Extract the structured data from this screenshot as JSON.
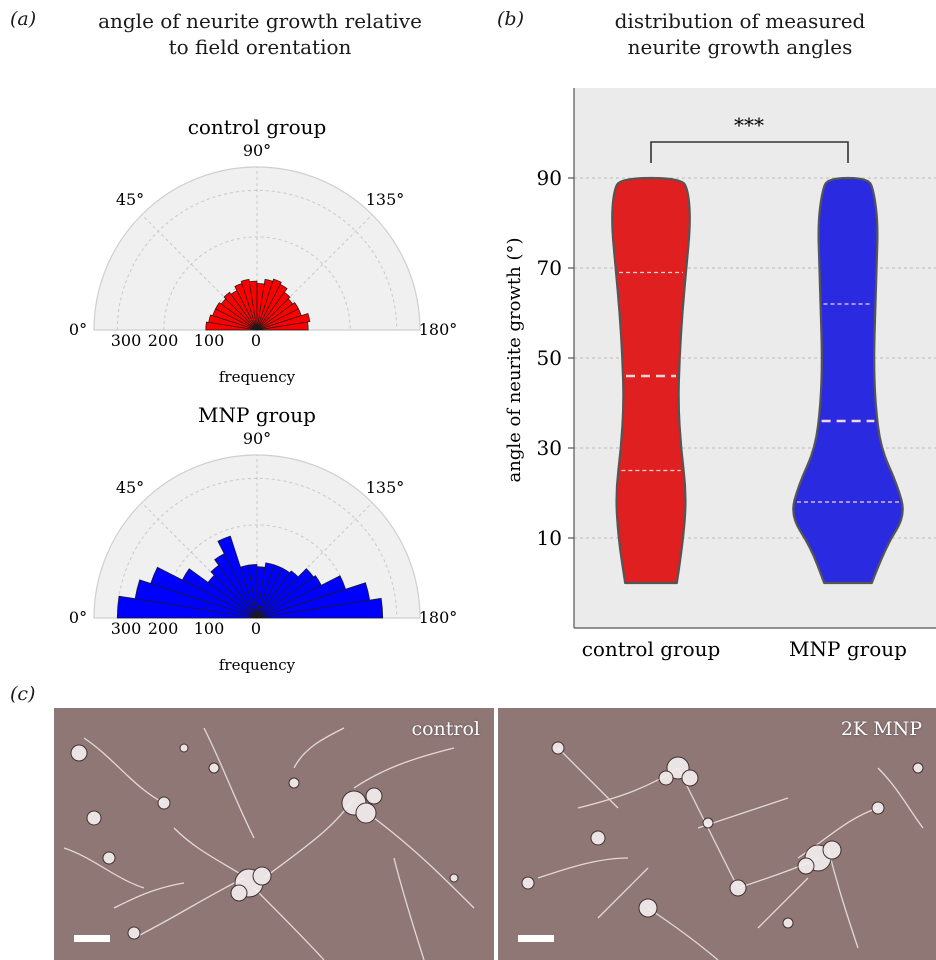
{
  "panel_a": {
    "label": "(a)",
    "title_line1": "angle of neurite growth relative",
    "title_line2": "to field orentation"
  },
  "panel_b": {
    "label": "(b)",
    "title_line1": "distribution of measured",
    "title_line2": "neurite growth angles"
  },
  "panel_c": {
    "label": "(c)",
    "left_tag": "control",
    "right_tag": "2K MNP"
  },
  "colors": {
    "control": "#ff0000",
    "mnp": "#0000ff",
    "control_violin": "#e02020",
    "mnp_violin": "#2a2ae0",
    "polar_bg": "#f0f0f0",
    "plot_bg": "#ebebeb",
    "micrograph_bg": "#8f7776"
  },
  "chart_data": [
    {
      "type": "polar-bar",
      "title": "control group",
      "xlabel": "frequency",
      "angle_labels": [
        "0°",
        "45°",
        "90°",
        "135°",
        "180°"
      ],
      "radial_ticks": [
        300,
        200,
        100,
        0
      ],
      "rmax": 350,
      "bin_width_deg": 9,
      "bins": [
        {
          "angle": 4.5,
          "value": 110
        },
        {
          "angle": 13.5,
          "value": 105
        },
        {
          "angle": 22.5,
          "value": 100
        },
        {
          "angle": 31.5,
          "value": 100
        },
        {
          "angle": 40.5,
          "value": 95
        },
        {
          "angle": 49.5,
          "value": 100
        },
        {
          "angle": 58.5,
          "value": 95
        },
        {
          "angle": 67.5,
          "value": 105
        },
        {
          "angle": 76.5,
          "value": 110
        },
        {
          "angle": 85.5,
          "value": 105
        },
        {
          "angle": 94.5,
          "value": 100
        },
        {
          "angle": 103.5,
          "value": 110
        },
        {
          "angle": 112.5,
          "value": 115
        },
        {
          "angle": 121.5,
          "value": 110
        },
        {
          "angle": 130.5,
          "value": 100
        },
        {
          "angle": 139.5,
          "value": 95
        },
        {
          "angle": 148.5,
          "value": 100
        },
        {
          "angle": 157.5,
          "value": 100
        },
        {
          "angle": 166.5,
          "value": 115
        },
        {
          "angle": 175.5,
          "value": 110
        }
      ]
    },
    {
      "type": "polar-bar",
      "title": "MNP group",
      "xlabel": "frequency",
      "angle_labels": [
        "0°",
        "45°",
        "90°",
        "135°",
        "180°"
      ],
      "radial_ticks": [
        300,
        200,
        100,
        0
      ],
      "rmax": 350,
      "bin_width_deg": 9,
      "bins": [
        {
          "angle": 4.5,
          "value": 300
        },
        {
          "angle": 13.5,
          "value": 265
        },
        {
          "angle": 22.5,
          "value": 240
        },
        {
          "angle": 31.5,
          "value": 180
        },
        {
          "angle": 40.5,
          "value": 130
        },
        {
          "angle": 49.5,
          "value": 140
        },
        {
          "angle": 58.5,
          "value": 155
        },
        {
          "angle": 67.5,
          "value": 185
        },
        {
          "angle": 76.5,
          "value": 115
        },
        {
          "angle": 85.5,
          "value": 115
        },
        {
          "angle": 94.5,
          "value": 110
        },
        {
          "angle": 103.5,
          "value": 120
        },
        {
          "angle": 112.5,
          "value": 120
        },
        {
          "angle": 121.5,
          "value": 120
        },
        {
          "angle": 130.5,
          "value": 125
        },
        {
          "angle": 139.5,
          "value": 150
        },
        {
          "angle": 148.5,
          "value": 155
        },
        {
          "angle": 157.5,
          "value": 200
        },
        {
          "angle": 166.5,
          "value": 245
        },
        {
          "angle": 175.5,
          "value": 270
        }
      ]
    },
    {
      "type": "violin",
      "title": "",
      "categories": [
        "control group",
        "MNP group"
      ],
      "ylabel": "angle of neurite growth (°)",
      "yticks": [
        10,
        30,
        50,
        70,
        90
      ],
      "ylim": [
        -10,
        110
      ],
      "grid": true,
      "significance": "***",
      "series": [
        {
          "category": "control group",
          "quartiles": [
            25,
            46,
            69
          ],
          "density": [
            [
              0,
              0.38
            ],
            [
              10,
              0.48
            ],
            [
              20,
              0.52
            ],
            [
              30,
              0.44
            ],
            [
              40,
              0.4
            ],
            [
              50,
              0.42
            ],
            [
              60,
              0.46
            ],
            [
              70,
              0.52
            ],
            [
              80,
              0.58
            ],
            [
              87,
              0.55
            ],
            [
              90,
              0.45
            ]
          ]
        },
        {
          "category": "MNP group",
          "quartiles": [
            18,
            36,
            62
          ],
          "density": [
            [
              0,
              0.35
            ],
            [
              8,
              0.55
            ],
            [
              15,
              0.85
            ],
            [
              22,
              0.72
            ],
            [
              30,
              0.48
            ],
            [
              40,
              0.4
            ],
            [
              50,
              0.38
            ],
            [
              60,
              0.4
            ],
            [
              70,
              0.42
            ],
            [
              80,
              0.44
            ],
            [
              87,
              0.38
            ],
            [
              90,
              0.3
            ]
          ]
        }
      ]
    }
  ]
}
